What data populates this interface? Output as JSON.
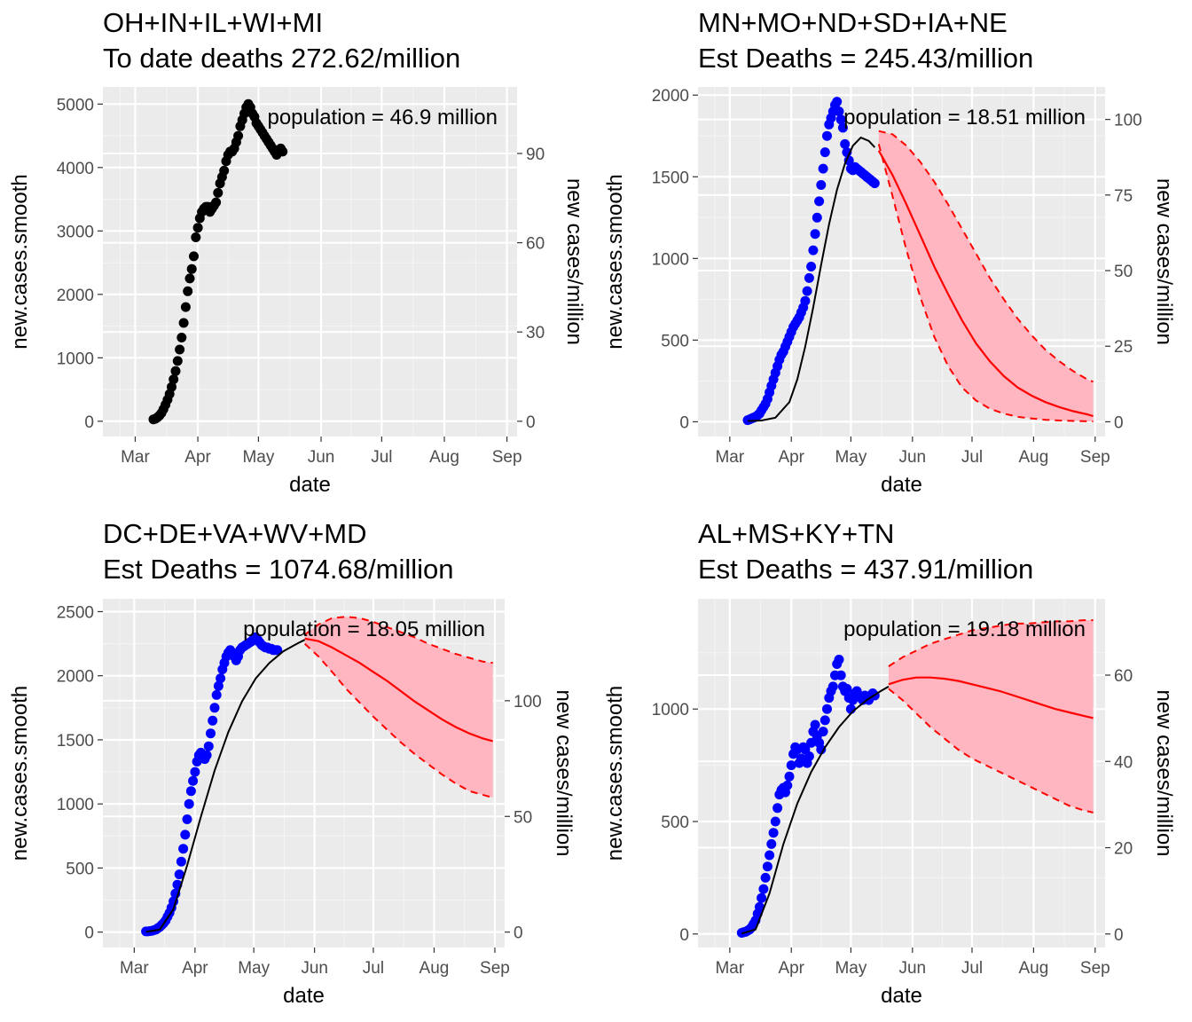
{
  "figure": {
    "x_tick_labels": [
      "Mar",
      "Apr",
      "May",
      "Jun",
      "Jul",
      "Aug",
      "Sep"
    ]
  },
  "chart_data": [
    {
      "type": "scatter",
      "title_line1": "OH+IN+IL+WI+MI",
      "title_line2": "To date deaths 272.62/million",
      "xlabel": "date",
      "ylabel": "new.cases.smooth",
      "y2label": "new cases/million",
      "annotation": "population = 46.9 million",
      "xlim": [
        "2020-02-14",
        "2020-09-06"
      ],
      "ylim": [
        -240,
        5270
      ],
      "yticks": [
        0,
        1000,
        2000,
        3000,
        4000,
        5000
      ],
      "y2ticks": [
        0,
        30,
        60,
        90
      ],
      "y2_scale": 46.9,
      "point_color": "#000000",
      "points": {
        "x": [
          "2020-03-10",
          "2020-03-11",
          "2020-03-12",
          "2020-03-13",
          "2020-03-14",
          "2020-03-15",
          "2020-03-16",
          "2020-03-17",
          "2020-03-18",
          "2020-03-19",
          "2020-03-20",
          "2020-03-21",
          "2020-03-22",
          "2020-03-23",
          "2020-03-24",
          "2020-03-25",
          "2020-03-26",
          "2020-03-27",
          "2020-03-28",
          "2020-03-29",
          "2020-03-30",
          "2020-03-31",
          "2020-04-01",
          "2020-04-02",
          "2020-04-03",
          "2020-04-04",
          "2020-04-05",
          "2020-04-06",
          "2020-04-07",
          "2020-04-08",
          "2020-04-09",
          "2020-04-10",
          "2020-04-11",
          "2020-04-12",
          "2020-04-13",
          "2020-04-14",
          "2020-04-15",
          "2020-04-16",
          "2020-04-17",
          "2020-04-18",
          "2020-04-19",
          "2020-04-20",
          "2020-04-21",
          "2020-04-22",
          "2020-04-23",
          "2020-04-24",
          "2020-04-25",
          "2020-04-26",
          "2020-04-27",
          "2020-04-28",
          "2020-04-29",
          "2020-04-30",
          "2020-05-01",
          "2020-05-02",
          "2020-05-03",
          "2020-05-04",
          "2020-05-05",
          "2020-05-06",
          "2020-05-07",
          "2020-05-08",
          "2020-05-09",
          "2020-05-10",
          "2020-05-11",
          "2020-05-12",
          "2020-05-13"
        ],
        "y": [
          30,
          40,
          60,
          90,
          130,
          190,
          260,
          340,
          430,
          540,
          660,
          790,
          950,
          1130,
          1320,
          1550,
          1800,
          2050,
          2250,
          2400,
          2600,
          2900,
          3050,
          3200,
          3300,
          3350,
          3380,
          3380,
          3300,
          3350,
          3400,
          3450,
          3600,
          3750,
          3850,
          3950,
          4100,
          4200,
          4250,
          4250,
          4300,
          4400,
          4500,
          4650,
          4750,
          4850,
          4950,
          5000,
          4950,
          4850,
          4800,
          4700,
          4650,
          4600,
          4550,
          4500,
          4450,
          4400,
          4350,
          4300,
          4250,
          4200,
          4250,
          4300,
          4250
        ]
      }
    },
    {
      "type": "scatter",
      "title_line1": "MN+MO+ND+SD+IA+NE",
      "title_line2": "Est Deaths = 245.43/million",
      "xlabel": "date",
      "ylabel": "new.cases.smooth",
      "y2label": "new cases/million",
      "annotation": "population = 18.51 million",
      "xlim": [
        "2020-02-14",
        "2020-09-06"
      ],
      "ylim": [
        -90,
        2050
      ],
      "yticks": [
        0,
        500,
        1000,
        1500,
        2000
      ],
      "y2ticks": [
        0,
        25,
        50,
        75,
        100
      ],
      "y2_scale": 18.51,
      "point_color": "#0000ff",
      "fit_color": "#000000",
      "forecast_color": "#ff0000",
      "band_color": "#ffb6c1",
      "points": {
        "x": [
          "2020-03-10",
          "2020-03-11",
          "2020-03-12",
          "2020-03-13",
          "2020-03-14",
          "2020-03-15",
          "2020-03-16",
          "2020-03-17",
          "2020-03-18",
          "2020-03-19",
          "2020-03-20",
          "2020-03-21",
          "2020-03-22",
          "2020-03-23",
          "2020-03-24",
          "2020-03-25",
          "2020-03-26",
          "2020-03-27",
          "2020-03-28",
          "2020-03-29",
          "2020-03-30",
          "2020-03-31",
          "2020-04-01",
          "2020-04-02",
          "2020-04-03",
          "2020-04-04",
          "2020-04-05",
          "2020-04-06",
          "2020-04-07",
          "2020-04-08",
          "2020-04-09",
          "2020-04-10",
          "2020-04-11",
          "2020-04-12",
          "2020-04-13",
          "2020-04-14",
          "2020-04-15",
          "2020-04-16",
          "2020-04-17",
          "2020-04-18",
          "2020-04-19",
          "2020-04-20",
          "2020-04-21",
          "2020-04-22",
          "2020-04-23",
          "2020-04-24",
          "2020-04-25",
          "2020-04-26",
          "2020-04-27",
          "2020-04-28",
          "2020-04-29",
          "2020-04-30",
          "2020-05-01",
          "2020-05-02",
          "2020-05-03",
          "2020-05-04",
          "2020-05-05",
          "2020-05-06",
          "2020-05-07",
          "2020-05-08",
          "2020-05-09",
          "2020-05-10",
          "2020-05-11",
          "2020-05-12",
          "2020-05-13"
        ],
        "y": [
          10,
          15,
          20,
          25,
          30,
          40,
          50,
          70,
          90,
          110,
          140,
          180,
          220,
          260,
          300,
          340,
          380,
          410,
          430,
          460,
          490,
          520,
          550,
          580,
          600,
          620,
          640,
          670,
          700,
          740,
          800,
          880,
          950,
          1050,
          1150,
          1250,
          1350,
          1450,
          1550,
          1650,
          1750,
          1820,
          1860,
          1900,
          1940,
          1960,
          1900,
          1850,
          1800,
          1700,
          1650,
          1600,
          1550,
          1540,
          1560,
          1550,
          1540,
          1530,
          1520,
          1510,
          1500,
          1490,
          1480,
          1470,
          1460
        ]
      },
      "fit": {
        "x": [
          "2020-03-10",
          "2020-03-17",
          "2020-03-24",
          "2020-03-31",
          "2020-04-04",
          "2020-04-08",
          "2020-04-12",
          "2020-04-16",
          "2020-04-20",
          "2020-04-24",
          "2020-04-28",
          "2020-05-02",
          "2020-05-06",
          "2020-05-10",
          "2020-05-13"
        ],
        "y": [
          5,
          8,
          25,
          120,
          260,
          460,
          700,
          960,
          1210,
          1420,
          1580,
          1690,
          1740,
          1720,
          1680
        ]
      },
      "forecast": {
        "x": [
          "2020-05-15",
          "2020-05-22",
          "2020-05-29",
          "2020-06-05",
          "2020-06-12",
          "2020-06-19",
          "2020-06-26",
          "2020-07-03",
          "2020-07-10",
          "2020-07-17",
          "2020-07-24",
          "2020-07-31",
          "2020-08-07",
          "2020-08-14",
          "2020-08-21",
          "2020-08-28",
          "2020-08-31"
        ],
        "y": [
          1660,
          1510,
          1330,
          1140,
          950,
          780,
          620,
          480,
          370,
          280,
          210,
          160,
          120,
          90,
          65,
          45,
          35
        ],
        "lower": [
          1700,
          1380,
          1050,
          760,
          520,
          340,
          210,
          130,
          80,
          50,
          30,
          20,
          12,
          8,
          5,
          3,
          2
        ],
        "upper": [
          1780,
          1760,
          1690,
          1590,
          1470,
          1330,
          1180,
          1030,
          880,
          750,
          630,
          530,
          440,
          370,
          310,
          260,
          245
        ]
      }
    },
    {
      "type": "scatter",
      "title_line1": "DC+DE+VA+WV+MD",
      "title_line2": "Est Deaths = 1074.68/million",
      "xlabel": "date",
      "ylabel": "new.cases.smooth",
      "y2label": "new cases/million",
      "annotation": "population = 18.05 million",
      "xlim": [
        "2020-02-14",
        "2020-09-06"
      ],
      "ylim": [
        -120,
        2600
      ],
      "yticks": [
        0,
        500,
        1000,
        1500,
        2000,
        2500
      ],
      "y2ticks": [
        0,
        50,
        100
      ],
      "y2_scale": 18.05,
      "point_color": "#0000ff",
      "fit_color": "#000000",
      "forecast_color": "#ff0000",
      "band_color": "#ffb6c1",
      "points": {
        "x": [
          "2020-03-07",
          "2020-03-08",
          "2020-03-09",
          "2020-03-10",
          "2020-03-11",
          "2020-03-12",
          "2020-03-13",
          "2020-03-14",
          "2020-03-15",
          "2020-03-16",
          "2020-03-17",
          "2020-03-18",
          "2020-03-19",
          "2020-03-20",
          "2020-03-21",
          "2020-03-22",
          "2020-03-23",
          "2020-03-24",
          "2020-03-25",
          "2020-03-26",
          "2020-03-27",
          "2020-03-28",
          "2020-03-29",
          "2020-03-30",
          "2020-03-31",
          "2020-04-01",
          "2020-04-02",
          "2020-04-03",
          "2020-04-04",
          "2020-04-05",
          "2020-04-06",
          "2020-04-07",
          "2020-04-08",
          "2020-04-09",
          "2020-04-10",
          "2020-04-11",
          "2020-04-12",
          "2020-04-13",
          "2020-04-14",
          "2020-04-15",
          "2020-04-16",
          "2020-04-17",
          "2020-04-18",
          "2020-04-19",
          "2020-04-20",
          "2020-04-21",
          "2020-04-22",
          "2020-04-23",
          "2020-04-24",
          "2020-04-25",
          "2020-04-26",
          "2020-04-27",
          "2020-04-28",
          "2020-04-29",
          "2020-04-30",
          "2020-05-01",
          "2020-05-02",
          "2020-05-03",
          "2020-05-04",
          "2020-05-05",
          "2020-05-06",
          "2020-05-07",
          "2020-05-08",
          "2020-05-09",
          "2020-05-10",
          "2020-05-11",
          "2020-05-12",
          "2020-05-13"
        ],
        "y": [
          5,
          5,
          8,
          10,
          15,
          20,
          30,
          40,
          55,
          70,
          90,
          120,
          150,
          190,
          240,
          300,
          370,
          450,
          550,
          650,
          760,
          880,
          1000,
          1100,
          1180,
          1250,
          1330,
          1380,
          1400,
          1380,
          1350,
          1380,
          1450,
          1550,
          1650,
          1750,
          1850,
          1920,
          1980,
          2050,
          2100,
          2150,
          2180,
          2200,
          2180,
          2150,
          2120,
          2150,
          2200,
          2220,
          2230,
          2240,
          2250,
          2260,
          2270,
          2290,
          2300,
          2280,
          2260,
          2240,
          2230,
          2220,
          2220,
          2210,
          2210,
          2200,
          2200,
          2200
        ]
      },
      "fit": {
        "x": [
          "2020-03-07",
          "2020-03-14",
          "2020-03-21",
          "2020-03-28",
          "2020-04-04",
          "2020-04-11",
          "2020-04-18",
          "2020-04-25",
          "2020-05-02",
          "2020-05-09",
          "2020-05-16",
          "2020-05-23",
          "2020-05-27"
        ],
        "y": [
          2,
          20,
          180,
          520,
          900,
          1260,
          1560,
          1800,
          1980,
          2100,
          2190,
          2250,
          2280
        ]
      },
      "forecast": {
        "x": [
          "2020-05-27",
          "2020-06-03",
          "2020-06-10",
          "2020-06-17",
          "2020-06-24",
          "2020-07-01",
          "2020-07-08",
          "2020-07-15",
          "2020-07-22",
          "2020-07-29",
          "2020-08-05",
          "2020-08-12",
          "2020-08-19",
          "2020-08-26",
          "2020-08-31"
        ],
        "y": [
          2290,
          2270,
          2220,
          2160,
          2100,
          2030,
          1960,
          1880,
          1800,
          1730,
          1660,
          1600,
          1550,
          1510,
          1490
        ],
        "lower": [
          2250,
          2150,
          2030,
          1900,
          1790,
          1680,
          1580,
          1480,
          1390,
          1310,
          1230,
          1160,
          1100,
          1070,
          1050
        ],
        "upper": [
          2320,
          2400,
          2450,
          2460,
          2450,
          2420,
          2380,
          2340,
          2300,
          2250,
          2210,
          2170,
          2140,
          2110,
          2100
        ]
      }
    },
    {
      "type": "scatter",
      "title_line1": "AL+MS+KY+TN",
      "title_line2": "Est Deaths = 437.91/million",
      "xlabel": "date",
      "ylabel": "new.cases.smooth",
      "y2label": "new cases/million",
      "annotation": "population = 19.18 million",
      "xlim": [
        "2020-02-14",
        "2020-09-06"
      ],
      "ylim": [
        -60,
        1490
      ],
      "yticks": [
        0,
        500,
        1000
      ],
      "y2ticks": [
        0,
        20,
        40,
        60
      ],
      "y2_scale": 19.18,
      "point_color": "#0000ff",
      "fit_color": "#000000",
      "forecast_color": "#ff0000",
      "band_color": "#ffb6c1",
      "points": {
        "x": [
          "2020-03-07",
          "2020-03-08",
          "2020-03-09",
          "2020-03-10",
          "2020-03-11",
          "2020-03-12",
          "2020-03-13",
          "2020-03-14",
          "2020-03-15",
          "2020-03-16",
          "2020-03-17",
          "2020-03-18",
          "2020-03-19",
          "2020-03-20",
          "2020-03-21",
          "2020-03-22",
          "2020-03-23",
          "2020-03-24",
          "2020-03-25",
          "2020-03-26",
          "2020-03-27",
          "2020-03-28",
          "2020-03-29",
          "2020-03-30",
          "2020-03-31",
          "2020-04-01",
          "2020-04-02",
          "2020-04-03",
          "2020-04-04",
          "2020-04-05",
          "2020-04-06",
          "2020-04-07",
          "2020-04-08",
          "2020-04-09",
          "2020-04-10",
          "2020-04-11",
          "2020-04-12",
          "2020-04-13",
          "2020-04-14",
          "2020-04-15",
          "2020-04-16",
          "2020-04-17",
          "2020-04-18",
          "2020-04-19",
          "2020-04-20",
          "2020-04-21",
          "2020-04-22",
          "2020-04-23",
          "2020-04-24",
          "2020-04-25",
          "2020-04-26",
          "2020-04-27",
          "2020-04-28",
          "2020-04-29",
          "2020-04-30",
          "2020-05-01",
          "2020-05-02",
          "2020-05-03",
          "2020-05-04",
          "2020-05-05",
          "2020-05-06",
          "2020-05-07",
          "2020-05-08",
          "2020-05-09",
          "2020-05-10",
          "2020-05-11",
          "2020-05-12",
          "2020-05-13"
        ],
        "y": [
          5,
          8,
          10,
          15,
          20,
          30,
          45,
          60,
          90,
          120,
          160,
          200,
          250,
          300,
          350,
          400,
          450,
          500,
          560,
          620,
          640,
          650,
          630,
          660,
          700,
          750,
          800,
          830,
          820,
          760,
          780,
          830,
          820,
          760,
          790,
          850,
          900,
          930,
          880,
          850,
          820,
          900,
          950,
          1000,
          1050,
          1080,
          1100,
          1150,
          1200,
          1220,
          1150,
          1100,
          1080,
          1090,
          1050,
          1000,
          1040,
          1070,
          1080,
          1060,
          1050,
          1040,
          1060,
          1050,
          1040,
          1060,
          1070,
          1060
        ]
      },
      "fit": {
        "x": [
          "2020-03-07",
          "2020-03-14",
          "2020-03-21",
          "2020-03-28",
          "2020-04-04",
          "2020-04-11",
          "2020-04-18",
          "2020-04-25",
          "2020-05-02",
          "2020-05-09",
          "2020-05-16",
          "2020-05-20"
        ],
        "y": [
          2,
          20,
          180,
          400,
          580,
          720,
          830,
          920,
          990,
          1040,
          1080,
          1100
        ]
      },
      "forecast": {
        "x": [
          "2020-05-20",
          "2020-05-27",
          "2020-06-03",
          "2020-06-10",
          "2020-06-17",
          "2020-06-24",
          "2020-07-01",
          "2020-07-08",
          "2020-07-15",
          "2020-07-22",
          "2020-07-29",
          "2020-08-05",
          "2020-08-12",
          "2020-08-19",
          "2020-08-26",
          "2020-08-31"
        ],
        "y": [
          1110,
          1130,
          1140,
          1140,
          1135,
          1125,
          1110,
          1095,
          1080,
          1060,
          1040,
          1020,
          1000,
          985,
          970,
          960
        ],
        "lower": [
          1090,
          1040,
          980,
          920,
          870,
          820,
          780,
          750,
          720,
          690,
          660,
          630,
          600,
          570,
          550,
          540
        ],
        "upper": [
          1190,
          1230,
          1260,
          1290,
          1310,
          1330,
          1350,
          1360,
          1370,
          1380,
          1380,
          1385,
          1390,
          1390,
          1395,
          1395
        ]
      }
    }
  ]
}
